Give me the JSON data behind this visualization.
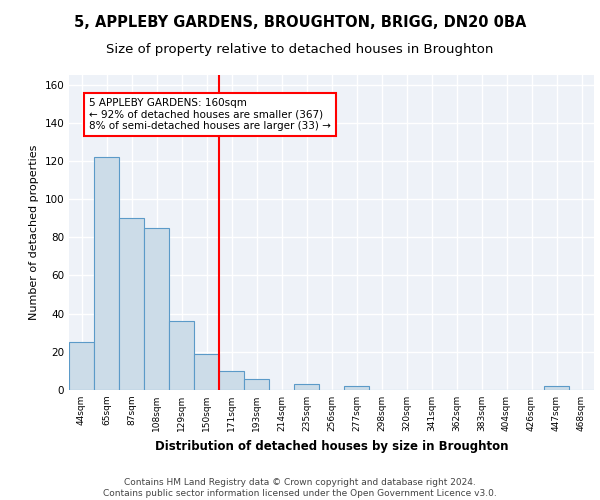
{
  "title_line1": "5, APPLEBY GARDENS, BROUGHTON, BRIGG, DN20 0BA",
  "title_line2": "Size of property relative to detached houses in Broughton",
  "xlabel": "Distribution of detached houses by size in Broughton",
  "ylabel": "Number of detached properties",
  "bar_color": "#ccdce8",
  "bar_edge_color": "#5b9ac8",
  "bar_edge_width": 0.8,
  "categories": [
    "44sqm",
    "65sqm",
    "87sqm",
    "108sqm",
    "129sqm",
    "150sqm",
    "171sqm",
    "193sqm",
    "214sqm",
    "235sqm",
    "256sqm",
    "277sqm",
    "298sqm",
    "320sqm",
    "341sqm",
    "362sqm",
    "383sqm",
    "404sqm",
    "426sqm",
    "447sqm",
    "468sqm"
  ],
  "values": [
    25,
    122,
    90,
    85,
    36,
    19,
    10,
    6,
    0,
    3,
    0,
    2,
    0,
    0,
    0,
    0,
    0,
    0,
    0,
    2,
    0
  ],
  "ylim": [
    0,
    165
  ],
  "yticks": [
    0,
    20,
    40,
    60,
    80,
    100,
    120,
    140,
    160
  ],
  "annotation_text": "5 APPLEBY GARDENS: 160sqm\n← 92% of detached houses are smaller (367)\n8% of semi-detached houses are larger (33) →",
  "annotation_box_color": "white",
  "annotation_box_edge": "red",
  "vline_color": "red",
  "vline_x": 5.5,
  "background_color": "#eef2f8",
  "grid_color": "white",
  "footer_text": "Contains HM Land Registry data © Crown copyright and database right 2024.\nContains public sector information licensed under the Open Government Licence v3.0.",
  "title_fontsize": 10.5,
  "subtitle_fontsize": 9.5,
  "annotation_fontsize": 7.5,
  "footer_fontsize": 6.5,
  "ylabel_fontsize": 8,
  "xlabel_fontsize": 8.5
}
